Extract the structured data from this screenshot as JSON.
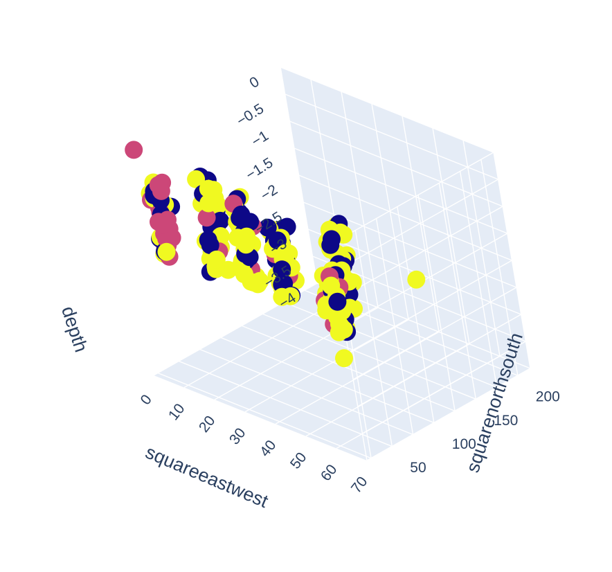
{
  "chart_data": {
    "type": "scatter3d",
    "axes": {
      "x": {
        "label": "squareeastwest",
        "range": [
          0,
          70
        ],
        "ticks": [
          0,
          10,
          20,
          30,
          40,
          50,
          60,
          70
        ]
      },
      "y": {
        "label": "squarenorthsouth",
        "range": [
          20,
          215
        ],
        "ticks": [
          50,
          100,
          150,
          200
        ]
      },
      "z": {
        "label": "depth",
        "range": [
          -4,
          0
        ],
        "ticks": [
          -4,
          -3.5,
          -3,
          -2.5,
          -2,
          -1.5,
          -1,
          -0.5,
          0
        ],
        "tick_labels": [
          "−4",
          "−3.5",
          "−3",
          "−2.5",
          "−2",
          "−1.5",
          "−1",
          "−0.5",
          "0"
        ]
      }
    },
    "grid": true,
    "legend": "none",
    "colors": {
      "dark": "#0d0887",
      "mid": "#cc4778",
      "light": "#f0f921"
    },
    "columns": [
      {
        "x": 6,
        "y": 40,
        "z_top": -0.45,
        "z_bottom": -1.85,
        "mix": "mid-heavy"
      },
      {
        "x": 12,
        "y": 75,
        "z_top": -0.55,
        "z_bottom": -2.3,
        "mix": "mixed"
      },
      {
        "x": 28,
        "y": 95,
        "z_top": -1.25,
        "z_bottom": -2.55,
        "mix": "mixed"
      },
      {
        "x": 34,
        "y": 40,
        "z_top": -0.15,
        "z_bottom": -1.75,
        "mix": "mixed"
      },
      {
        "x": 43,
        "y": 110,
        "z_top": -1.0,
        "z_bottom": -2.6,
        "mix": "mixed"
      },
      {
        "x": 60,
        "y": 45,
        "z_top": -0.95,
        "z_bottom": -2.1,
        "mix": "light-heavy"
      }
    ],
    "outliers": [
      {
        "x": 0,
        "y": 40,
        "z": 0,
        "c": "mid"
      },
      {
        "x": 55,
        "y": 80,
        "z": -1.55,
        "c": "light"
      },
      {
        "x": 40,
        "y": 200,
        "z": -2.9,
        "c": "light"
      },
      {
        "x": 60,
        "y": 45,
        "z": -2.55,
        "c": "light"
      }
    ]
  }
}
